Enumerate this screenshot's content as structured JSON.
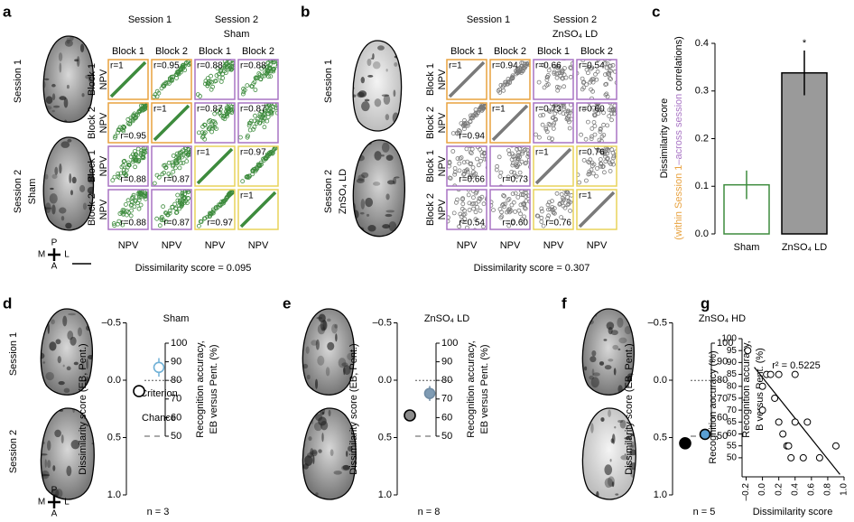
{
  "panel_labels": [
    "a",
    "b",
    "c",
    "d",
    "e",
    "f",
    "g"
  ],
  "compass": [
    "P",
    "A",
    "M",
    "L"
  ],
  "frame_colors": {
    "within_session_1": "#e8a23f",
    "across_session": "#a874c4",
    "within_session_2": "#e8d35a"
  },
  "matrix_panels": [
    {
      "session_labels": [
        "Session 1",
        "Session 2",
        "Sham"
      ],
      "headers": [
        "Session 1",
        "Session 2",
        "Sham"
      ],
      "blocks": [
        "Block 1",
        "Block 2",
        "Block 1",
        "Block 2"
      ],
      "axis_label": "NPV",
      "marker_color": "#3d8b3d",
      "r": [
        [
          1,
          0.95,
          0.88,
          0.88
        ],
        [
          0.95,
          1,
          0.87,
          0.87
        ],
        [
          0.88,
          0.87,
          1,
          0.97
        ],
        [
          0.88,
          0.87,
          0.97,
          1
        ]
      ],
      "r_labels": [
        [
          "r=1",
          "r=0.95",
          "r=0.88",
          "r=0.88"
        ],
        [
          "r=0.95",
          "r=1",
          "r=0.87",
          "r=0.87"
        ],
        [
          "r=0.88",
          "r=0.87",
          "r=1",
          "r=0.97"
        ],
        [
          "r=0.88",
          "r=0.87",
          "r=0.97",
          "r=1"
        ]
      ],
      "footer": "Dissimilarity score = 0.095"
    },
    {
      "session_labels": [
        "Session 1",
        "Session 2",
        "ZnSO₄ LD"
      ],
      "headers": [
        "Session 1",
        "Session 2",
        "ZnSO₄ LD"
      ],
      "blocks": [
        "Block 1",
        "Block 2",
        "Block 1",
        "Block 2"
      ],
      "axis_label": "NPV",
      "marker_color": "#7a7a7a",
      "r": [
        [
          1,
          0.94,
          0.66,
          0.54
        ],
        [
          0.94,
          1,
          0.73,
          0.6
        ],
        [
          0.66,
          0.73,
          1,
          0.76
        ],
        [
          0.54,
          0.6,
          0.76,
          1
        ]
      ],
      "r_labels": [
        [
          "r=1",
          "r=0.94",
          "r=0.66",
          "r=0.54"
        ],
        [
          "r=0.94",
          "r=1",
          "r=0.73",
          "r=0.60"
        ],
        [
          "r=0.66",
          "r=0.73",
          "r=1",
          "r=0.76"
        ],
        [
          "r=0.54",
          "r=0.60",
          "r=0.76",
          "r=1"
        ]
      ],
      "footer": "Dissimilarity score = 0.307"
    }
  ],
  "chart_data": [
    {
      "type": "bar",
      "ylabel": "Dissimilarity score",
      "ylabel_note": [
        {
          "text": "(within Session 1",
          "color": "#e8a23f"
        },
        {
          "text": "–across session",
          "color": "#a874c4"
        },
        {
          "text": "correlations)",
          "color": "#000000"
        }
      ],
      "categories": [
        "Sham",
        "ZnSO₄ LD"
      ],
      "values": [
        0.103,
        0.338
      ],
      "errors": [
        0.03,
        0.047
      ],
      "fills": [
        "#ffffff",
        "#9a9a9a"
      ],
      "strokes": [
        "#3d8b3d",
        "#000000"
      ],
      "ylim": [
        0,
        0.4
      ],
      "yticks": [
        {
          "value": 0,
          "label": "0.0"
        },
        0.1,
        0.2,
        0.3,
        0.4
      ],
      "significance": "*",
      "significance_color": "#e02020"
    },
    {
      "type": "dot",
      "title": "Sham",
      "session_labels": [
        "Session 1",
        "Session 2"
      ],
      "ylabel": "Dissimilarity score (EB, Pent.)",
      "y2label": [
        "Recognition accuracy,",
        "EB versus Pent. (%)"
      ],
      "ylim": [
        -0.5,
        1.0
      ],
      "yticks": [
        {
          "value": -0.5,
          "label": "–0.5"
        },
        {
          "value": 0,
          "label": "0.0"
        },
        0.5,
        {
          "value": 1,
          "label": "1.0"
        }
      ],
      "y2lim": [
        50,
        100
      ],
      "y2ticks": [
        100,
        90,
        80,
        70,
        60,
        50
      ],
      "dissimilarity": 0.095,
      "dissimilarity_color": "#ffffff",
      "accuracy": 87,
      "accuracy_error": 5,
      "accuracy_fill": "#ffffff",
      "accuracy_stroke": "#6fb0d6",
      "criterion": 80,
      "criterion_label": "Criterion",
      "chance": 50,
      "chance_label": "Chance",
      "n_label": "n = 3"
    },
    {
      "type": "dot",
      "title": "ZnSO₄ LD",
      "ylabel": "Dissimilarity score (EB, Pent.)",
      "y2label": [
        "Recognition accuracy,",
        "EB versus Pent. (%)"
      ],
      "ylim": [
        -0.5,
        1.0
      ],
      "yticks": [
        {
          "value": -0.5,
          "label": "–0.5"
        },
        {
          "value": 0,
          "label": "0.0"
        },
        0.5,
        {
          "value": 1,
          "label": "1.0"
        }
      ],
      "y2lim": [
        50,
        100
      ],
      "y2ticks": [
        100,
        90,
        80,
        70,
        60,
        50
      ],
      "dissimilarity": 0.307,
      "dissimilarity_color": "#8c8c8c",
      "accuracy": 73,
      "accuracy_error": 4,
      "accuracy_fill": "#7f9bb3",
      "accuracy_stroke": "#6f8ba3",
      "criterion": 80,
      "chance": 50,
      "n_label": "n = 8"
    },
    {
      "type": "dot",
      "title": "ZnSO₄ HD",
      "ylabel": "Dissimilarity score (EB, Pent.)",
      "y2label": [
        "Recognition accuracy,",
        "B versus Pent. (%)"
      ],
      "ylim": [
        -0.5,
        1.0
      ],
      "yticks": [
        {
          "value": -0.5,
          "label": "–0.5"
        },
        {
          "value": 0,
          "label": "0.0"
        },
        0.5,
        {
          "value": 1,
          "label": "1.0"
        }
      ],
      "y2lim": [
        50,
        100
      ],
      "y2ticks": [
        100,
        90,
        80,
        70,
        60,
        50
      ],
      "dissimilarity": 0.55,
      "dissimilarity_color": "#000000",
      "accuracy": 51,
      "accuracy_error": 2,
      "accuracy_fill": "#5a9fd4",
      "accuracy_stroke": "#000000",
      "criterion": 80,
      "chance": 50,
      "n_label": "n = 5"
    },
    {
      "type": "scatter",
      "xlabel": "Dissimilarity score",
      "ylabel": "Recognition accuracy (%)",
      "annotation": "r² = 0.5225",
      "x": [
        -0.18,
        0.0,
        0.0,
        0.05,
        0.1,
        0.15,
        0.2,
        0.2,
        0.25,
        0.3,
        0.32,
        0.4,
        0.35,
        0.4,
        0.5,
        0.55,
        0.7,
        0.9
      ],
      "y": [
        95,
        80,
        70,
        85,
        85,
        75,
        85,
        65,
        60,
        55,
        55,
        85,
        50,
        65,
        50,
        65,
        50,
        55
      ],
      "fit_line": {
        "x": [
          -0.1,
          0.95
        ],
        "y": [
          88,
          43
        ]
      },
      "xlim": [
        -0.25,
        1.0
      ],
      "xticks": [
        {
          "value": -0.2,
          "label": "–0.2"
        },
        {
          "value": 0,
          "label": "0.0"
        },
        0.2,
        0.4,
        0.6,
        0.8,
        {
          "value": 1,
          "label": "1.0"
        }
      ],
      "ylim": [
        42,
        100
      ],
      "yticks": [
        50,
        55,
        60,
        65,
        70,
        75,
        80,
        85,
        90,
        95,
        100
      ]
    }
  ]
}
